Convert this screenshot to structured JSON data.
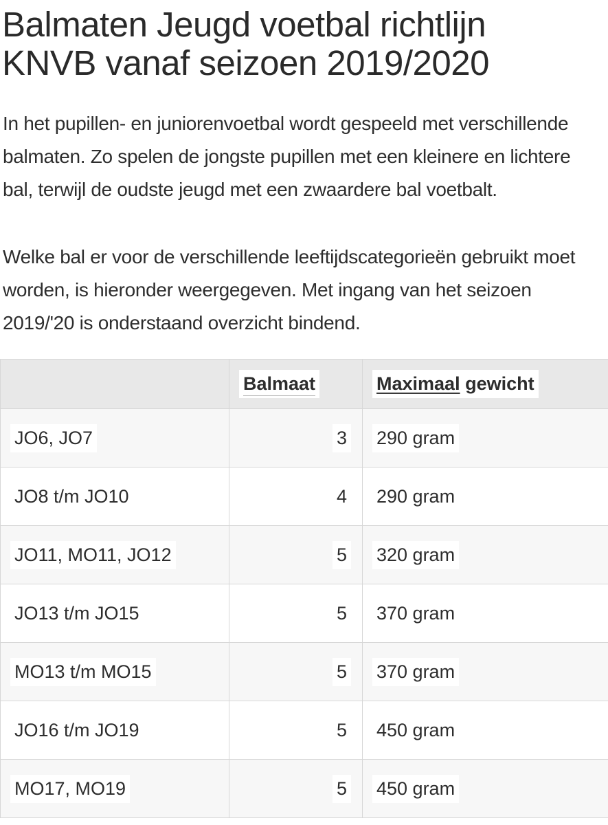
{
  "page": {
    "title": "Balmaten Jeugd voetbal richtlijn\nKNVB vanaf seizoen 2019/2020",
    "paragraphs": [
      "In het pupillen- en juniorenvoetbal wordt gespeeld met verschillende\nbalmaten. Zo spelen de jongste pupillen met een kleinere en lichtere\nbal, terwijl de oudste jeugd met een zwaardere bal voetbalt.",
      "Welke bal er voor de verschillende leeftijdscategorieën gebruikt moet\nworden, is hieronder weergegeven. Met ingang van het seizoen\n2019/'20 is onderstaand overzicht bindend."
    ]
  },
  "table": {
    "headers": {
      "category": "",
      "balmaat": "Balmaat",
      "maximaal": "Maximaal",
      "gewicht": " gewicht"
    },
    "rows": [
      {
        "categorie": "JO6, JO7",
        "balmaat": "3",
        "gewicht": "290 gram"
      },
      {
        "categorie": "JO8 t/m JO10",
        "balmaat": "4",
        "gewicht": "290 gram"
      },
      {
        "categorie": "JO11, MO11, JO12",
        "balmaat": "5",
        "gewicht": "320 gram"
      },
      {
        "categorie": "JO13 t/m JO15",
        "balmaat": "5",
        "gewicht": "370 gram"
      },
      {
        "categorie": "MO13 t/m MO15",
        "balmaat": "5",
        "gewicht": "370 gram"
      },
      {
        "categorie": "JO16 t/m JO19",
        "balmaat": "5",
        "gewicht": "450 gram"
      },
      {
        "categorie": "MO17, MO19",
        "balmaat": "5",
        "gewicht": "450 gram"
      }
    ]
  },
  "colors": {
    "text": "#2d2d2d",
    "header_bg": "#e8e8e8",
    "alt_row_bg": "#f7f7f7",
    "border": "#d7d7d7",
    "highlight_bg": "#ffffff"
  }
}
